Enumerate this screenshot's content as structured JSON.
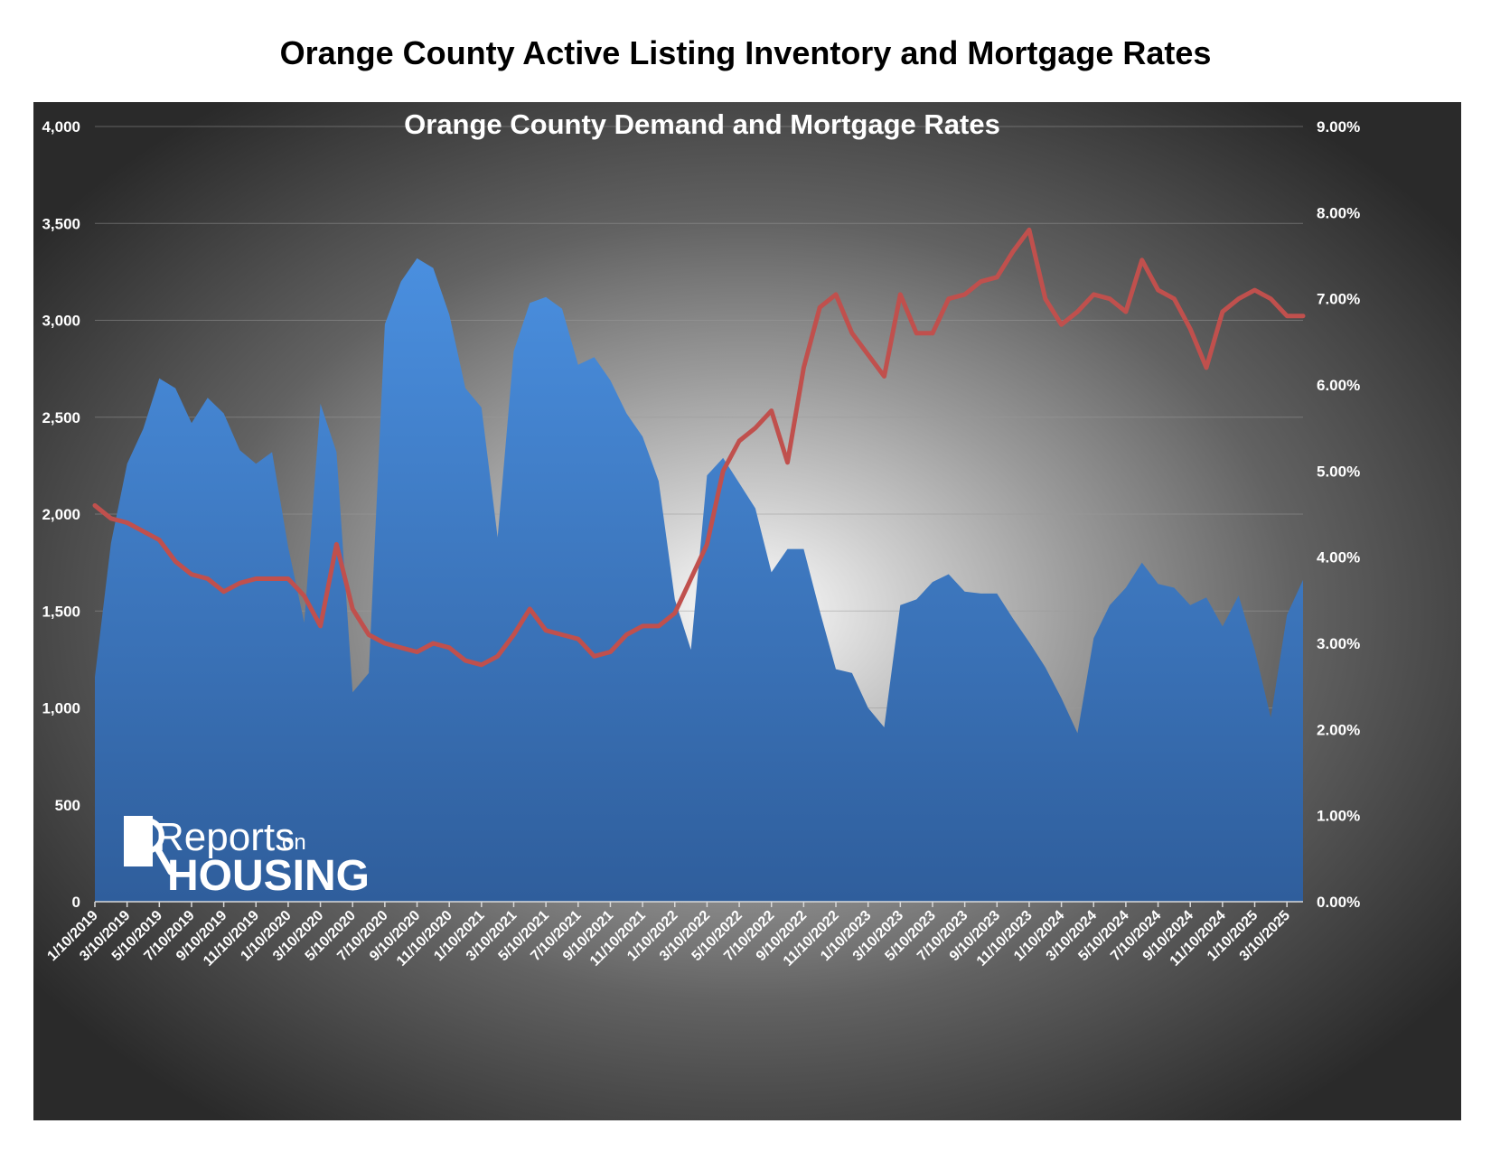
{
  "page_title": "Orange County Active Listing Inventory and Mortgage Rates",
  "colors": {
    "inventory_area_top": "#4a8fdf",
    "inventory_area_bottom": "#2f5e9c",
    "rate_line": "#c0504d",
    "text": "#ffffff",
    "gridline": "#9a9a9a"
  },
  "logo": {
    "word1": "Reports",
    "word2": "on",
    "word3": "HOUSING",
    "icon": "magnifier-icon"
  },
  "chart_data": {
    "type": "area",
    "title": "Orange County Demand and Mortgage Rates",
    "legend": "none",
    "grid": true,
    "y_left": {
      "range": [
        0,
        4000
      ],
      "ticks": [
        "4,000",
        "3,500",
        "3,000",
        "2,500",
        "2,000",
        "1,500",
        "1,000",
        "500",
        "0"
      ]
    },
    "y_right": {
      "range": [
        0,
        9
      ],
      "ticks": [
        "9.00%",
        "8.00%",
        "7.00%",
        "6.00%",
        "5.00%",
        "4.00%",
        "3.00%",
        "2.00%",
        "1.00%",
        "0.00%"
      ]
    },
    "x_tick_labels": [
      "1/10/2019",
      "3/10/2019",
      "5/10/2019",
      "7/10/2019",
      "9/10/2019",
      "11/10/2019",
      "1/10/2020",
      "3/10/2020",
      "5/10/2020",
      "7/10/2020",
      "9/10/2020",
      "11/10/2020",
      "1/10/2021",
      "3/10/2021",
      "5/10/2021",
      "7/10/2021",
      "9/10/2021",
      "11/10/2021",
      "1/10/2022",
      "3/10/2022",
      "5/10/2022",
      "7/10/2022",
      "9/10/2022",
      "11/10/2022",
      "1/10/2023",
      "3/10/2023",
      "5/10/2023",
      "7/10/2023",
      "9/10/2023",
      "11/10/2023",
      "1/10/2024",
      "3/10/2024",
      "5/10/2024",
      "7/10/2024",
      "9/10/2024",
      "11/10/2024",
      "1/10/2025",
      "3/10/2025"
    ],
    "series": [
      {
        "kind": "area",
        "axis": "left",
        "points": [
          [
            "1/10/2019",
            1160
          ],
          [
            "2/10/2019",
            1850
          ],
          [
            "3/10/2019",
            2260
          ],
          [
            "4/10/2019",
            2440
          ],
          [
            "5/10/2019",
            2700
          ],
          [
            "6/10/2019",
            2650
          ],
          [
            "7/10/2019",
            2470
          ],
          [
            "8/10/2019",
            2600
          ],
          [
            "9/10/2019",
            2520
          ],
          [
            "10/10/2019",
            2330
          ],
          [
            "11/10/2019",
            2260
          ],
          [
            "12/10/2019",
            2320
          ],
          [
            "1/10/2020",
            1830
          ],
          [
            "2/10/2020",
            1440
          ],
          [
            "3/10/2020",
            2570
          ],
          [
            "4/10/2020",
            2320
          ],
          [
            "5/10/2020",
            1080
          ],
          [
            "6/10/2020",
            1180
          ],
          [
            "7/10/2020",
            2980
          ],
          [
            "8/10/2020",
            3200
          ],
          [
            "9/10/2020",
            3320
          ],
          [
            "10/10/2020",
            3270
          ],
          [
            "11/10/2020",
            3030
          ],
          [
            "12/10/2020",
            2650
          ],
          [
            "1/10/2021",
            2550
          ],
          [
            "2/10/2021",
            1880
          ],
          [
            "3/10/2021",
            2840
          ],
          [
            "4/10/2021",
            3090
          ],
          [
            "5/10/2021",
            3120
          ],
          [
            "6/10/2021",
            3060
          ],
          [
            "7/10/2021",
            2770
          ],
          [
            "8/10/2021",
            2810
          ],
          [
            "9/10/2021",
            2690
          ],
          [
            "10/10/2021",
            2520
          ],
          [
            "11/10/2021",
            2400
          ],
          [
            "12/10/2021",
            2170
          ],
          [
            "1/10/2022",
            1560
          ],
          [
            "2/10/2022",
            1300
          ],
          [
            "3/10/2022",
            2200
          ],
          [
            "4/10/2022",
            2290
          ],
          [
            "5/10/2022",
            2160
          ],
          [
            "6/10/2022",
            2030
          ],
          [
            "7/10/2022",
            1700
          ],
          [
            "8/10/2022",
            1820
          ],
          [
            "9/10/2022",
            1820
          ],
          [
            "10/10/2022",
            1500
          ],
          [
            "11/10/2022",
            1200
          ],
          [
            "12/10/2022",
            1180
          ],
          [
            "1/10/2023",
            1000
          ],
          [
            "2/10/2023",
            900
          ],
          [
            "3/10/2023",
            1530
          ],
          [
            "4/10/2023",
            1560
          ],
          [
            "5/10/2023",
            1650
          ],
          [
            "6/10/2023",
            1690
          ],
          [
            "7/10/2023",
            1600
          ],
          [
            "8/10/2023",
            1590
          ],
          [
            "9/10/2023",
            1590
          ],
          [
            "10/10/2023",
            1460
          ],
          [
            "11/10/2023",
            1340
          ],
          [
            "12/10/2023",
            1210
          ],
          [
            "1/10/2024",
            1050
          ],
          [
            "2/10/2024",
            870
          ],
          [
            "3/10/2024",
            1360
          ],
          [
            "4/10/2024",
            1530
          ],
          [
            "5/10/2024",
            1620
          ],
          [
            "6/10/2024",
            1750
          ],
          [
            "7/10/2024",
            1640
          ],
          [
            "8/10/2024",
            1620
          ],
          [
            "9/10/2024",
            1530
          ],
          [
            "10/10/2024",
            1570
          ],
          [
            "11/10/2024",
            1420
          ],
          [
            "12/10/2024",
            1580
          ],
          [
            "1/10/2025",
            1300
          ],
          [
            "2/10/2025",
            950
          ],
          [
            "3/10/2025",
            1480
          ],
          [
            "4/10/2025",
            1660
          ]
        ]
      },
      {
        "kind": "line",
        "axis": "right",
        "points": [
          [
            "1/10/2019",
            4.6
          ],
          [
            "2/10/2019",
            4.45
          ],
          [
            "3/10/2019",
            4.4
          ],
          [
            "4/10/2019",
            4.3
          ],
          [
            "5/10/2019",
            4.2
          ],
          [
            "6/10/2019",
            3.95
          ],
          [
            "7/10/2019",
            3.8
          ],
          [
            "8/10/2019",
            3.75
          ],
          [
            "9/10/2019",
            3.6
          ],
          [
            "10/10/2019",
            3.7
          ],
          [
            "11/10/2019",
            3.75
          ],
          [
            "12/10/2019",
            3.75
          ],
          [
            "1/10/2020",
            3.75
          ],
          [
            "2/10/2020",
            3.55
          ],
          [
            "3/10/2020",
            3.2
          ],
          [
            "4/10/2020",
            4.15
          ],
          [
            "5/10/2020",
            3.4
          ],
          [
            "6/10/2020",
            3.1
          ],
          [
            "7/10/2020",
            3.0
          ],
          [
            "8/10/2020",
            2.95
          ],
          [
            "9/10/2020",
            2.9
          ],
          [
            "10/10/2020",
            3.0
          ],
          [
            "11/10/2020",
            2.95
          ],
          [
            "12/10/2020",
            2.8
          ],
          [
            "1/10/2021",
            2.75
          ],
          [
            "2/10/2021",
            2.85
          ],
          [
            "3/10/2021",
            3.1
          ],
          [
            "4/10/2021",
            3.4
          ],
          [
            "5/10/2021",
            3.15
          ],
          [
            "6/10/2021",
            3.1
          ],
          [
            "7/10/2021",
            3.05
          ],
          [
            "8/10/2021",
            2.85
          ],
          [
            "9/10/2021",
            2.9
          ],
          [
            "10/10/2021",
            3.1
          ],
          [
            "11/10/2021",
            3.2
          ],
          [
            "12/10/2021",
            3.2
          ],
          [
            "1/10/2022",
            3.35
          ],
          [
            "2/10/2022",
            3.75
          ],
          [
            "3/10/2022",
            4.15
          ],
          [
            "4/10/2022",
            5.0
          ],
          [
            "5/10/2022",
            5.35
          ],
          [
            "6/10/2022",
            5.5
          ],
          [
            "7/10/2022",
            5.7
          ],
          [
            "8/10/2022",
            5.1
          ],
          [
            "9/10/2022",
            6.2
          ],
          [
            "10/10/2022",
            6.9
          ],
          [
            "11/10/2022",
            7.05
          ],
          [
            "12/10/2022",
            6.6
          ],
          [
            "1/10/2023",
            6.35
          ],
          [
            "2/10/2023",
            6.1
          ],
          [
            "3/10/2023",
            7.05
          ],
          [
            "4/10/2023",
            6.6
          ],
          [
            "5/10/2023",
            6.6
          ],
          [
            "6/10/2023",
            7.0
          ],
          [
            "7/10/2023",
            7.05
          ],
          [
            "8/10/2023",
            7.2
          ],
          [
            "9/10/2023",
            7.25
          ],
          [
            "10/10/2023",
            7.55
          ],
          [
            "11/10/2023",
            7.8
          ],
          [
            "12/10/2023",
            7.0
          ],
          [
            "1/10/2024",
            6.7
          ],
          [
            "2/10/2024",
            6.85
          ],
          [
            "3/10/2024",
            7.05
          ],
          [
            "4/10/2024",
            7.0
          ],
          [
            "5/10/2024",
            6.85
          ],
          [
            "6/10/2024",
            7.45
          ],
          [
            "7/10/2024",
            7.1
          ],
          [
            "8/10/2024",
            7.0
          ],
          [
            "9/10/2024",
            6.65
          ],
          [
            "10/10/2024",
            6.2
          ],
          [
            "11/10/2024",
            6.85
          ],
          [
            "12/10/2024",
            7.0
          ],
          [
            "1/10/2025",
            7.1
          ],
          [
            "2/10/2025",
            7.0
          ],
          [
            "3/10/2025",
            6.8
          ],
          [
            "4/10/2025",
            6.8
          ]
        ]
      }
    ]
  }
}
